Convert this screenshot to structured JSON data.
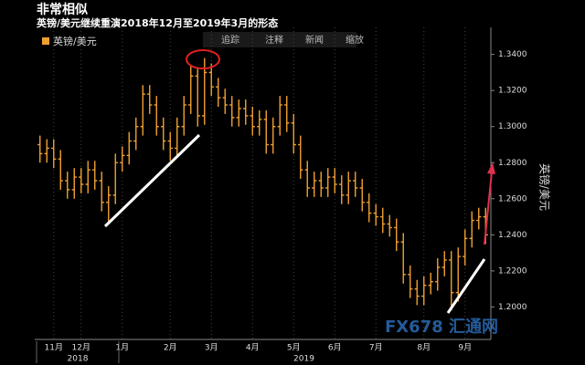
{
  "chart_data": {
    "type": "ohlc",
    "title": "非常相似",
    "subtitle": "英镑/美元继续重演2018年12月至2019年3月的形态",
    "toolbar": [
      "追踪",
      "注释",
      "新闻",
      "缩放"
    ],
    "y_label": "英镑/美元",
    "watermark": "FX678 汇通网",
    "series": [
      {
        "name": "英镑/美元",
        "color": "#f0a030",
        "open": [
          1.29,
          1.285,
          1.288,
          1.282,
          1.27,
          1.265,
          1.272,
          1.268,
          1.276,
          1.27,
          1.258,
          1.262,
          1.28,
          1.284,
          1.292,
          1.3,
          1.318,
          1.312,
          1.3,
          1.292,
          1.288,
          1.3,
          1.312,
          1.328,
          1.306,
          1.33,
          1.322,
          1.316,
          1.312,
          1.305,
          1.31,
          1.306,
          1.3,
          1.304,
          1.29,
          1.3,
          1.312,
          1.302,
          1.29,
          1.276,
          1.266,
          1.27,
          1.266,
          1.272,
          1.268,
          1.262,
          1.27,
          1.266,
          1.258,
          1.252,
          1.25,
          1.246,
          1.244,
          1.236,
          1.218,
          1.21,
          1.206,
          1.212,
          1.214,
          1.222,
          1.226,
          1.208,
          1.228,
          1.238,
          1.248,
          1.25
        ],
        "high": [
          1.295,
          1.293,
          1.293,
          1.287,
          1.275,
          1.277,
          1.277,
          1.281,
          1.281,
          1.275,
          1.267,
          1.285,
          1.289,
          1.297,
          1.305,
          1.323,
          1.323,
          1.317,
          1.305,
          1.297,
          1.305,
          1.317,
          1.334,
          1.333,
          1.338,
          1.335,
          1.327,
          1.321,
          1.317,
          1.315,
          1.315,
          1.311,
          1.309,
          1.309,
          1.305,
          1.317,
          1.317,
          1.307,
          1.295,
          1.281,
          1.275,
          1.275,
          1.277,
          1.277,
          1.273,
          1.275,
          1.275,
          1.271,
          1.263,
          1.257,
          1.255,
          1.251,
          1.249,
          1.241,
          1.223,
          1.215,
          1.217,
          1.219,
          1.227,
          1.231,
          1.231,
          1.233,
          1.243,
          1.253,
          1.255,
          1.255
        ],
        "low": [
          1.28,
          1.28,
          1.277,
          1.265,
          1.26,
          1.26,
          1.263,
          1.263,
          1.265,
          1.253,
          1.246,
          1.257,
          1.275,
          1.279,
          1.287,
          1.295,
          1.307,
          1.295,
          1.287,
          1.281,
          1.283,
          1.295,
          1.307,
          1.3,
          1.301,
          1.317,
          1.311,
          1.307,
          1.3,
          1.3,
          1.301,
          1.295,
          1.295,
          1.285,
          1.285,
          1.295,
          1.297,
          1.285,
          1.271,
          1.261,
          1.261,
          1.261,
          1.261,
          1.263,
          1.257,
          1.257,
          1.261,
          1.253,
          1.247,
          1.245,
          1.241,
          1.239,
          1.231,
          1.213,
          1.205,
          1.201,
          1.201,
          1.207,
          1.209,
          1.217,
          1.198,
          1.203,
          1.223,
          1.233,
          1.243,
          1.235
        ],
        "close": [
          1.285,
          1.288,
          1.282,
          1.27,
          1.265,
          1.272,
          1.268,
          1.276,
          1.27,
          1.258,
          1.262,
          1.28,
          1.284,
          1.292,
          1.3,
          1.318,
          1.312,
          1.3,
          1.292,
          1.288,
          1.3,
          1.312,
          1.328,
          1.306,
          1.33,
          1.322,
          1.316,
          1.312,
          1.305,
          1.31,
          1.306,
          1.3,
          1.304,
          1.29,
          1.3,
          1.312,
          1.302,
          1.29,
          1.276,
          1.266,
          1.27,
          1.266,
          1.272,
          1.268,
          1.262,
          1.27,
          1.266,
          1.258,
          1.252,
          1.25,
          1.246,
          1.244,
          1.236,
          1.218,
          1.21,
          1.206,
          1.212,
          1.214,
          1.222,
          1.226,
          1.208,
          1.228,
          1.238,
          1.248,
          1.25,
          1.24
        ]
      }
    ],
    "categories": [
      null,
      null,
      "11月",
      null,
      null,
      null,
      "12月",
      null,
      null,
      null,
      null,
      null,
      "1月",
      null,
      null,
      null,
      null,
      null,
      null,
      "2月",
      null,
      null,
      null,
      null,
      null,
      "3月",
      null,
      null,
      null,
      null,
      null,
      "4月",
      null,
      null,
      null,
      null,
      null,
      "5月",
      null,
      null,
      null,
      null,
      null,
      "6月",
      null,
      null,
      null,
      null,
      null,
      "7月",
      null,
      null,
      null,
      null,
      null,
      null,
      "8月",
      null,
      null,
      null,
      null,
      null,
      "9月",
      null,
      null,
      null
    ],
    "year_labels": [
      {
        "label": "2018",
        "from": 0,
        "to": 11
      },
      {
        "label": "2019",
        "from": 12,
        "to": 65
      }
    ],
    "ylim": [
      1.182,
      1.355
    ],
    "yticks": [
      {
        "value": 1.2,
        "label": "1.2000"
      },
      {
        "value": 1.22,
        "label": "1.2200"
      },
      {
        "value": 1.24,
        "label": "1.2400"
      },
      {
        "value": 1.26,
        "label": "1.2600"
      },
      {
        "value": 1.28,
        "label": "1.2800"
      },
      {
        "value": 1.3,
        "label": "1.3000"
      },
      {
        "value": 1.32,
        "label": "1.3200"
      },
      {
        "value": 1.34,
        "label": "1.3400"
      }
    ]
  }
}
